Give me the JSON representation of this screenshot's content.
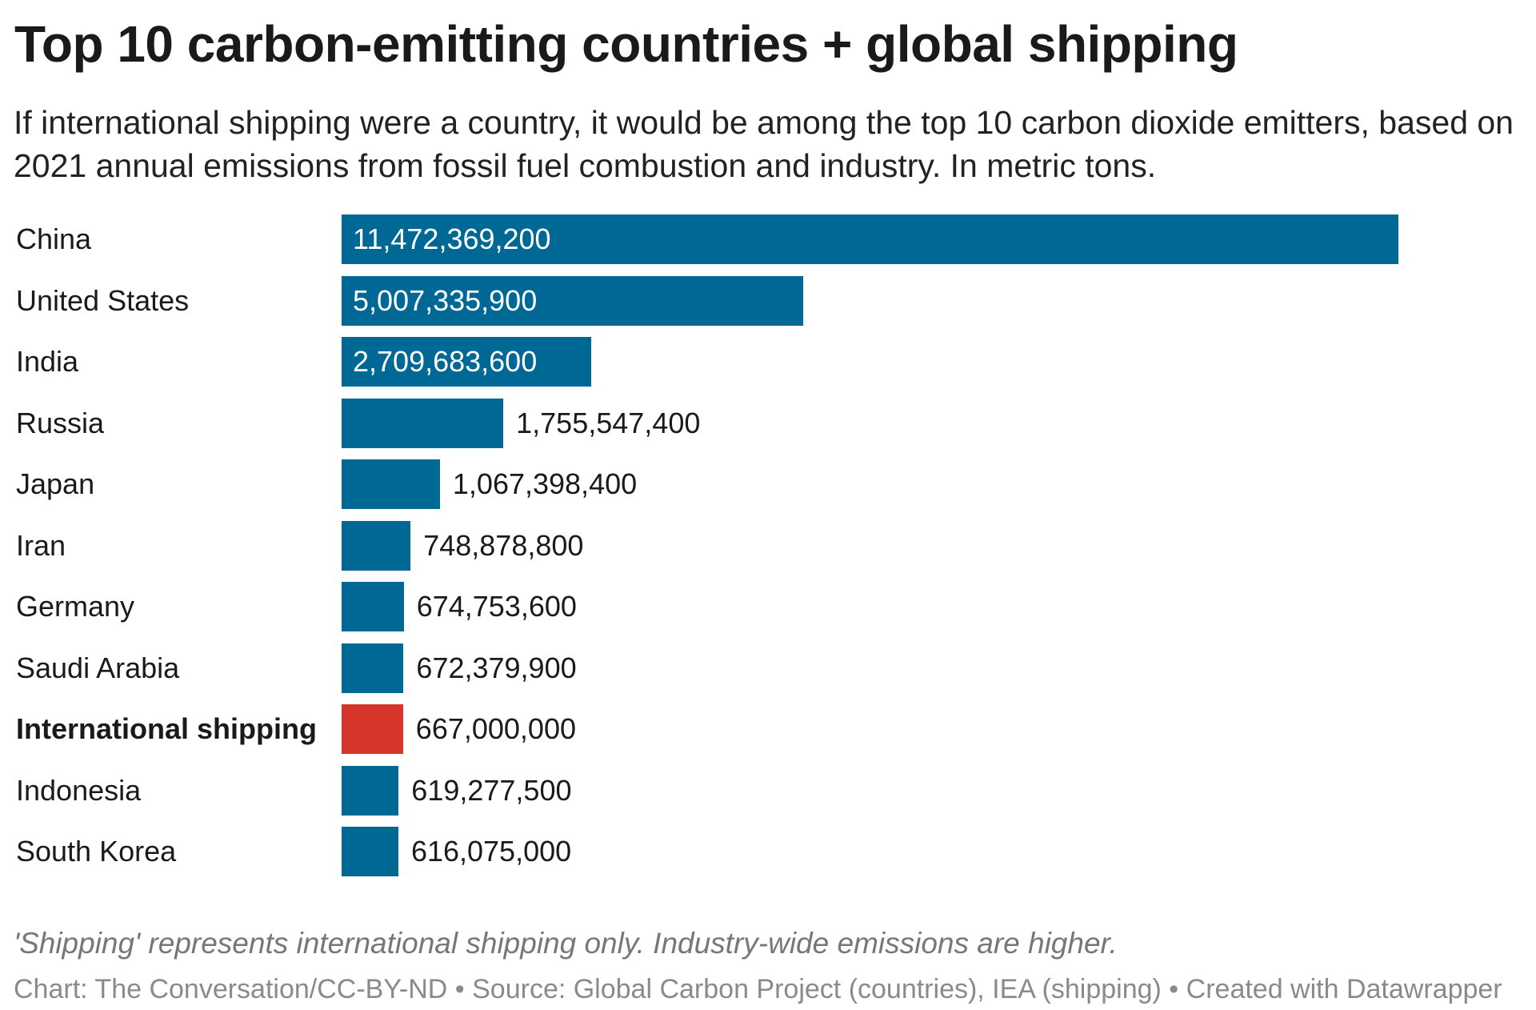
{
  "chart_data": {
    "type": "bar",
    "orientation": "horizontal",
    "title": "Top 10 carbon-emitting countries + global shipping",
    "subtitle": "If international shipping were a country, it would be among the top 10 carbon dioxide emitters, based on 2021 annual emissions from fossil fuel combustion and industry. In metric tons.",
    "categories": [
      "China",
      "United States",
      "India",
      "Russia",
      "Japan",
      "Iran",
      "Germany",
      "Saudi Arabia",
      "International shipping",
      "Indonesia",
      "South Korea"
    ],
    "values": [
      11472369200,
      5007335900,
      2709683600,
      1755547400,
      1067398400,
      748878800,
      674753600,
      672379900,
      667000000,
      619277500,
      616075000
    ],
    "value_labels": [
      "11,472,369,200",
      "5,007,335,900",
      "2,709,683,600",
      "1,755,547,400",
      "1,067,398,400",
      "748,878,800",
      "674,753,600",
      "672,379,900",
      "667,000,000",
      "619,277,500",
      "616,075,000"
    ],
    "highlight": "International shipping",
    "colors": {
      "default": "#006894",
      "highlight": "#d5352b"
    },
    "grid": false,
    "note": "'Shipping' represents international shipping only. Industry-wide emissions are higher.",
    "credit": "Chart: The Conversation/CC-BY-ND • Source: Global Carbon Project (countries), IEA (shipping) • Created with Datawrapper"
  }
}
